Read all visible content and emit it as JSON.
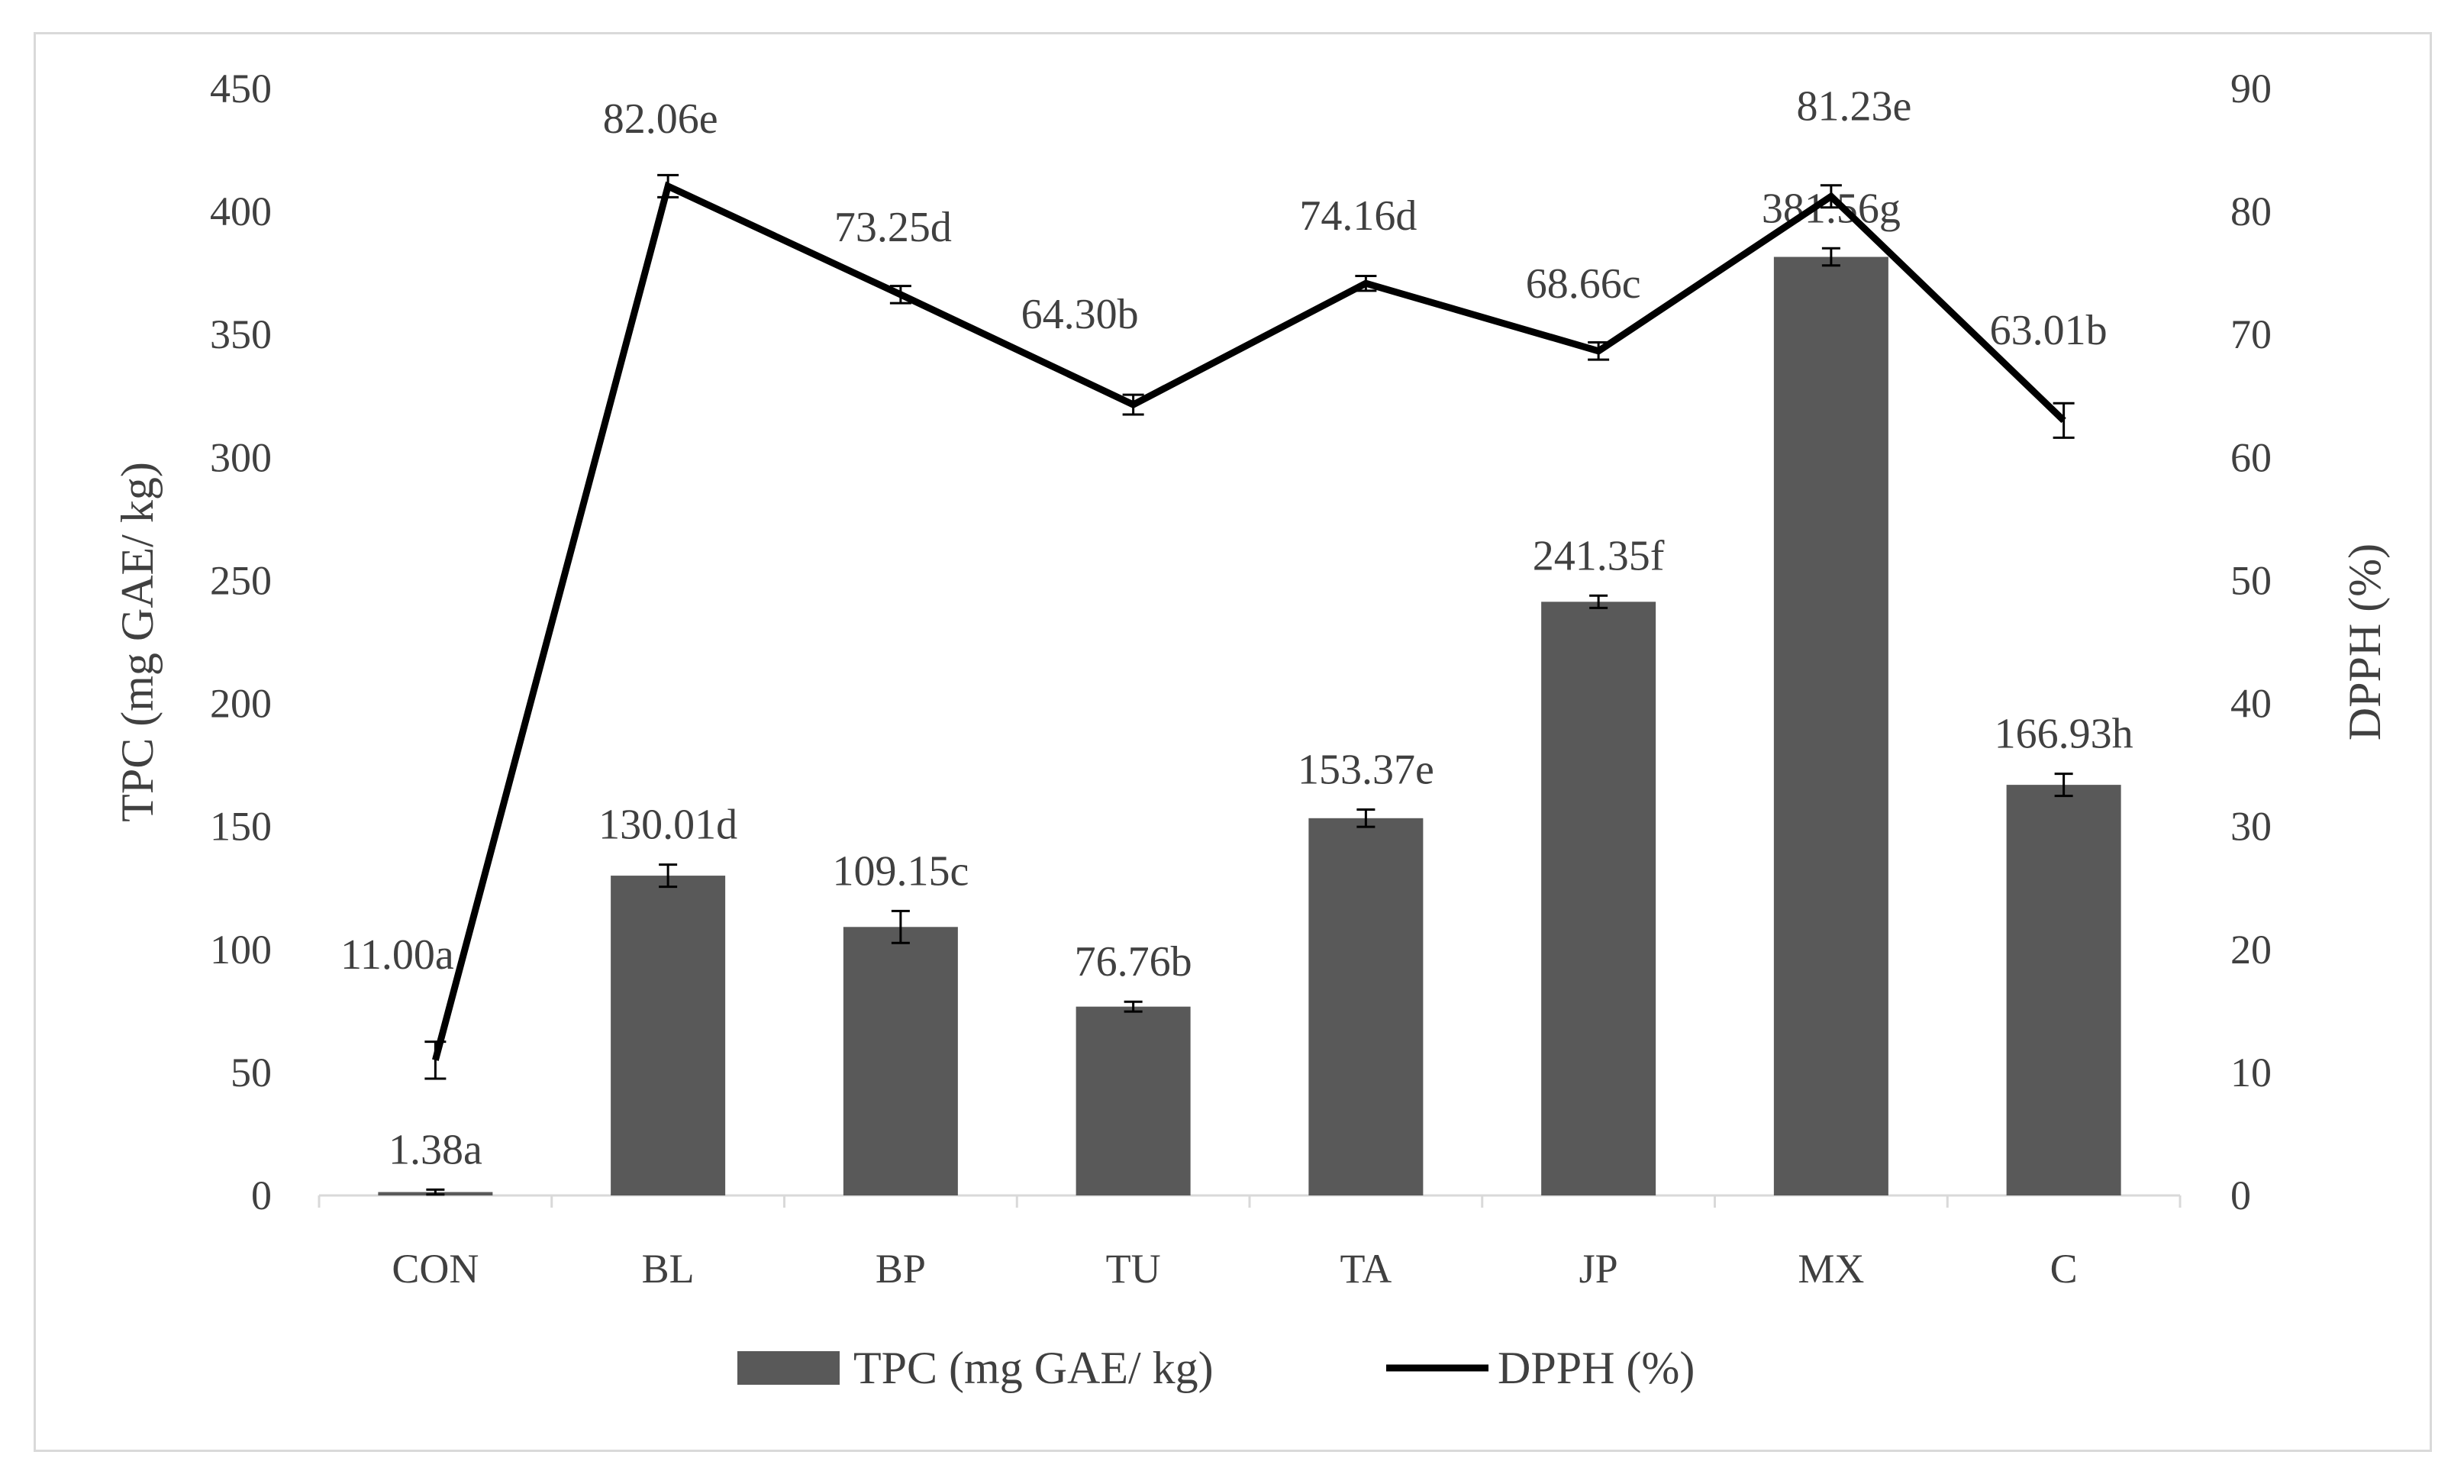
{
  "colors": {
    "bar": "#595959",
    "line": "#000000",
    "axis": "#d9d9d9",
    "text": "#404040"
  },
  "chart_data": {
    "type": "bar",
    "categories": [
      "CON",
      "BL",
      "BP",
      "TU",
      "TA",
      "JP",
      "MX",
      "C"
    ],
    "y_left": {
      "label": "TPC (mg GAE/ kg)",
      "lim": [
        0,
        450
      ],
      "ticks": [
        "0",
        "50",
        "100",
        "150",
        "200",
        "250",
        "300",
        "350",
        "400",
        "450"
      ]
    },
    "y_right": {
      "label": "DPPH (%)",
      "lim": [
        0,
        90
      ],
      "ticks": [
        "0",
        "10",
        "20",
        "30",
        "40",
        "50",
        "60",
        "70",
        "80",
        "90"
      ]
    },
    "grid": false,
    "legend_position": "bottom",
    "series": [
      {
        "name": "TPC (mg GAE/ kg)",
        "kind": "bar",
        "axis": "left",
        "values": [
          1.38,
          130.01,
          109.15,
          76.76,
          153.37,
          241.35,
          381.56,
          166.93
        ],
        "errors": [
          1.0,
          4.5,
          6.5,
          2.0,
          3.5,
          2.5,
          3.5,
          4.5
        ],
        "labels": [
          "1.38a",
          "130.01d",
          "109.15c",
          "76.76b",
          "153.37e",
          "241.35f",
          "381.56g",
          "166.93h"
        ]
      },
      {
        "name": "DPPH (%)",
        "kind": "line",
        "axis": "right",
        "values": [
          11.0,
          82.06,
          73.25,
          64.3,
          74.16,
          68.66,
          81.23,
          63.01
        ],
        "errors": [
          1.5,
          0.9,
          0.7,
          0.8,
          0.6,
          0.7,
          0.9,
          1.4
        ],
        "labels": [
          "11.00a",
          "82.06e",
          "73.25d",
          "64.30b",
          "74.16d",
          "68.66c",
          "81.23e",
          "63.01b"
        ]
      }
    ]
  }
}
